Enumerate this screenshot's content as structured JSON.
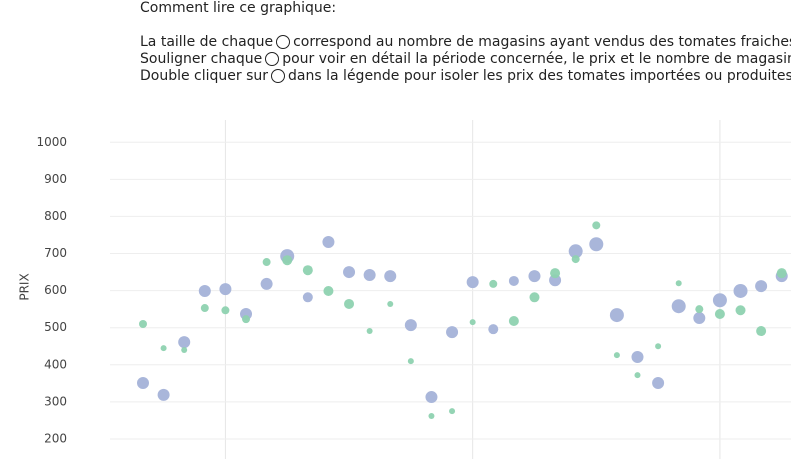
{
  "instructions": {
    "heading": "Comment lire ce graphique:",
    "lines": [
      [
        "La taille de chaque",
        "correspond au nombre de magasins ayant vendus des tomates fraiches au"
      ],
      [
        "Souligner chaque",
        "pour voir en détail la période concernée, le prix et le nombre de magasins."
      ],
      [
        "Double cliquer sur",
        "dans la légende pour isoler les prix des tomates importées ou produites lo"
      ]
    ]
  },
  "chart_data": {
    "type": "scatter",
    "y_label": "PRIX",
    "x": [
      0,
      1,
      2,
      3,
      4,
      5,
      6,
      7,
      8,
      9,
      10,
      11,
      12,
      13,
      14,
      15,
      16,
      17,
      18,
      19,
      20,
      21,
      22,
      23,
      24,
      25,
      26,
      27,
      28,
      29,
      30,
      31
    ],
    "xlim": [
      -3.3,
      31.45
    ],
    "xticks": [
      4,
      16,
      28
    ],
    "ylim": [
      146,
      1060
    ],
    "yticks": [
      200,
      300,
      400,
      500,
      600,
      700,
      800,
      900,
      1000
    ],
    "grid": true,
    "series": [
      {
        "color": "#a4b2d8",
        "values": [
          351,
          319,
          461,
          599,
          604,
          537,
          618,
          693,
          582,
          731,
          650,
          642,
          639,
          507,
          313,
          488,
          623,
          496,
          626,
          639,
          628,
          706,
          725,
          534,
          421,
          351,
          558,
          526,
          574,
          599,
          612,
          639
        ],
        "sizes": [
          6,
          6,
          6,
          6,
          6,
          6,
          6,
          7,
          5,
          6,
          6,
          6,
          6,
          6,
          6,
          6,
          6,
          5,
          5,
          6,
          6,
          7,
          7,
          7,
          6,
          6,
          7,
          6,
          7,
          7,
          6,
          6
        ]
      },
      {
        "color": "#8ed2b0",
        "values": [
          510,
          445,
          440,
          553,
          547,
          523,
          677,
          682,
          655,
          599,
          564,
          491,
          564,
          410,
          262,
          275,
          515,
          618,
          518,
          582,
          647,
          685,
          776,
          426,
          372,
          450,
          620,
          550,
          537,
          547,
          491,
          647
        ],
        "sizes": [
          4,
          3,
          3,
          4,
          4,
          4,
          4,
          5,
          5,
          5,
          5,
          3,
          3,
          3,
          3,
          3,
          3,
          4,
          5,
          5,
          5,
          4,
          4,
          3,
          3,
          3,
          3,
          4,
          5,
          5,
          5,
          5
        ]
      }
    ]
  }
}
